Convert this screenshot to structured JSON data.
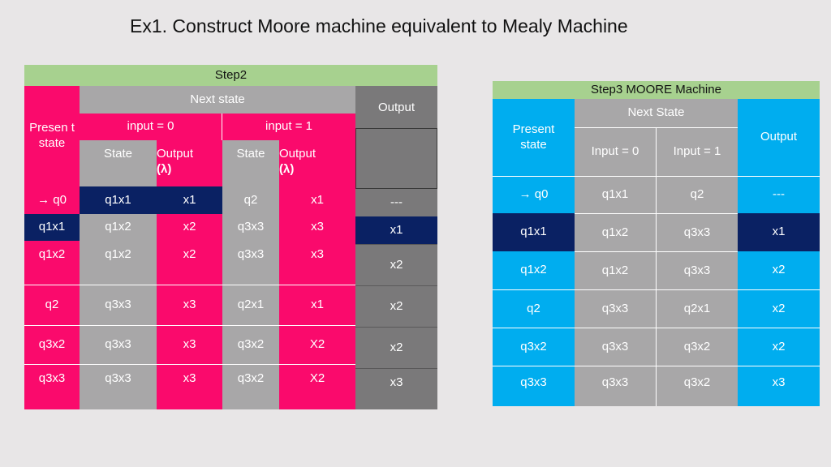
{
  "title": "Ex1. Construct Moore machine equivalent to Mealy Machine",
  "step2": {
    "title": "Step2",
    "present_state_header": "Presen t state",
    "next_state_header": "Next state",
    "output_header": "Output",
    "input0_header": "input = 0",
    "input1_header": "input = 1",
    "state_label": "State",
    "output_label": "Output",
    "lambda": "λ",
    "rows": [
      {
        "present": "→ q0",
        "s0": "q1x1",
        "o0": "x1",
        "s1": "q2",
        "o1": "x1",
        "out": "---"
      },
      {
        "present": "q1x1",
        "s0": "q1x2",
        "o0": "x2",
        "s1": "q3x3",
        "o1": "x3",
        "out": "x1"
      },
      {
        "present": "q1x2",
        "s0": "q1x2",
        "o0": "x2",
        "s1": "q3x3",
        "o1": "x3",
        "out": "x2"
      },
      {
        "present": "q2",
        "s0": "q3x3",
        "o0": "x3",
        "s1": "q2x1",
        "o1": "x1",
        "out": "x2"
      },
      {
        "present": "q3x2",
        "s0": "q3x3",
        "o0": "x3",
        "s1": "q3x2",
        "o1": "X2",
        "out": "x2"
      },
      {
        "present": "q3x3",
        "s0": "q3x3",
        "o0": "x3",
        "s1": "q3x2",
        "o1": "X2",
        "out": "x3"
      }
    ]
  },
  "step3": {
    "title": "Step3 MOORE Machine",
    "present_state_header": "Present state",
    "next_state_header": "Next State",
    "output_header": "Output",
    "input0_header": "Input = 0",
    "input1_header": "Input = 1",
    "rows": [
      {
        "present": "→ q0",
        "s0": "q1x1",
        "s1": "q2",
        "out": "---"
      },
      {
        "present": "q1x1",
        "s0": "q1x2",
        "s1": "q3x3",
        "out": "x1"
      },
      {
        "present": "q1x2",
        "s0": "q1x2",
        "s1": "q3x3",
        "out": "x2"
      },
      {
        "present": "q2",
        "s0": "q3x3",
        "s1": "q2x1",
        "out": "x2"
      },
      {
        "present": "q3x2",
        "s0": "q3x3",
        "s1": "q3x2",
        "out": "x2"
      },
      {
        "present": "q3x3",
        "s0": "q3x3",
        "s1": "q3x2",
        "out": "x3"
      }
    ]
  }
}
